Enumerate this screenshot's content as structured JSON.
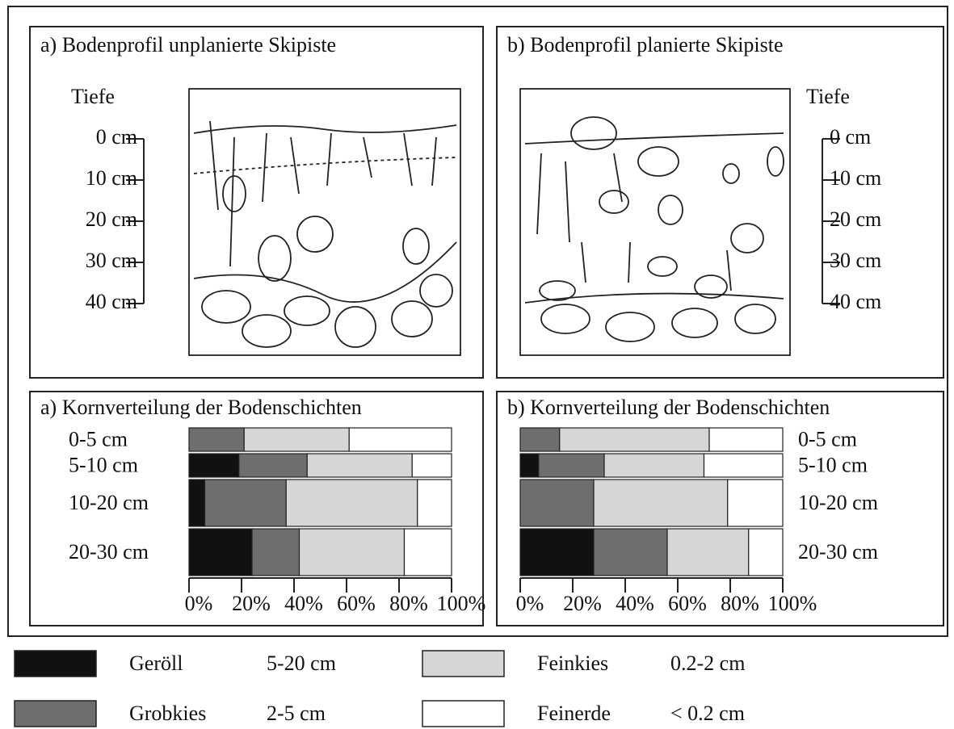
{
  "profiles": [
    {
      "title": "a) Bodenprofil unplanierte Skipiste",
      "axis_title": "Tiefe",
      "depth_labels": [
        "0 cm",
        "10 cm",
        "20 cm",
        "30 cm",
        "40 cm"
      ]
    },
    {
      "title": "b) Bodenprofil planierte Skipiste",
      "axis_title": "Tiefe",
      "depth_labels": [
        "0 cm",
        "10 cm",
        "20 cm",
        "30 cm",
        "40 cm"
      ]
    }
  ],
  "chart_data": [
    {
      "type": "bar",
      "stacked": true,
      "title": "a) Kornverteilung der Bodenschichten",
      "categories": [
        "0-5 cm",
        "5-10 cm",
        "10-20 cm",
        "20-30 cm"
      ],
      "series": [
        {
          "color": "#111111",
          "values": [
            0,
            19,
            6,
            24
          ]
        },
        {
          "color": "#6e6e6e",
          "values": [
            21,
            26,
            31,
            18
          ]
        },
        {
          "color": "#d6d6d6",
          "values": [
            40,
            40,
            50,
            40
          ]
        },
        {
          "color": "#ffffff",
          "values": [
            39,
            15,
            13,
            18
          ]
        }
      ],
      "xlim": [
        0,
        100
      ],
      "xticks": [
        {
          "value": 0,
          "label": "0%"
        },
        {
          "value": 20,
          "label": "20%"
        },
        {
          "value": 40,
          "label": "40%"
        },
        {
          "value": 60,
          "label": "60%"
        },
        {
          "value": 80,
          "label": "80%"
        },
        {
          "value": 100,
          "label": "100%"
        }
      ]
    },
    {
      "type": "bar",
      "stacked": true,
      "title": "b) Kornverteilung der Bodenschichten",
      "categories": [
        "0-5 cm",
        "5-10 cm",
        "10-20 cm",
        "20-30 cm"
      ],
      "series": [
        {
          "color": "#111111",
          "values": [
            0,
            7,
            0,
            28
          ]
        },
        {
          "color": "#6e6e6e",
          "values": [
            15,
            25,
            28,
            28
          ]
        },
        {
          "color": "#d6d6d6",
          "values": [
            57,
            38,
            51,
            31
          ]
        },
        {
          "color": "#ffffff",
          "values": [
            28,
            30,
            21,
            13
          ]
        }
      ],
      "xlim": [
        0,
        100
      ],
      "xticks": [
        {
          "value": 0,
          "label": "0%"
        },
        {
          "value": 20,
          "label": "20%"
        },
        {
          "value": 40,
          "label": "40%"
        },
        {
          "value": 60,
          "label": "60%"
        },
        {
          "value": 80,
          "label": "80%"
        },
        {
          "value": 100,
          "label": "100%"
        }
      ]
    }
  ],
  "legend": [
    {
      "name": "Geröll",
      "range": "5-20 cm"
    },
    {
      "name": "Grobkies",
      "range": "2-5 cm"
    },
    {
      "name": "Feinkies",
      "range": "0.2-2 cm"
    },
    {
      "name": "Feinerde",
      "range": "< 0.2 cm"
    }
  ]
}
